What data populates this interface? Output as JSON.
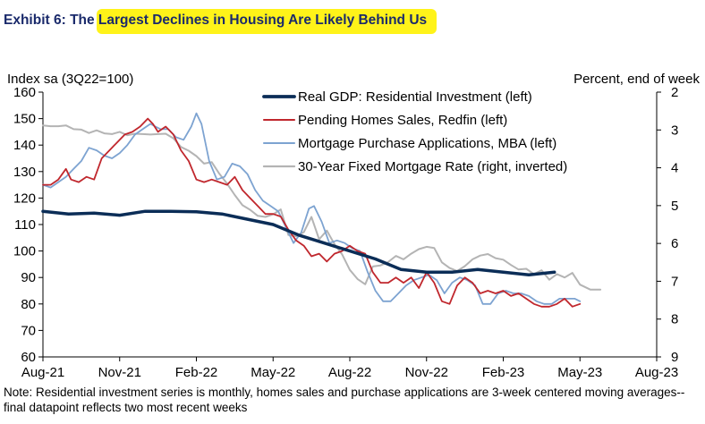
{
  "title": "Exhibit 6: The Largest Declines in Housing Are Likely Behind Us",
  "note": "Note: Residential investment series is monthly, homes sales and purchase applications are 3-week centered moving averages--final datapoint reflects two most recent weeks",
  "chart_data": {
    "type": "line",
    "left_axis_label": "Index sa (3Q22=100)",
    "right_axis_label": "Percent, end of week",
    "ylim_left": [
      60,
      160
    ],
    "yticks_left": [
      "60",
      "70",
      "80",
      "90",
      "100",
      "110",
      "120",
      "130",
      "140",
      "150",
      "160"
    ],
    "ylim_right": [
      2,
      9
    ],
    "right_axis_inverted": true,
    "yticks_right": [
      "2",
      "3",
      "4",
      "5",
      "6",
      "7",
      "8",
      "9"
    ],
    "xticks": [
      "Aug-21",
      "Nov-21",
      "Feb-22",
      "May-22",
      "Aug-22",
      "Nov-22",
      "Feb-23",
      "May-23",
      "Aug-23"
    ],
    "x_unit": "months since Aug-21",
    "legend_position": "top-center",
    "grid": false,
    "series": [
      {
        "name": "Real GDP: Residential Investment (left)",
        "color": "#0b2d57",
        "axis": "left",
        "points": [
          [
            0,
            115
          ],
          [
            1,
            114
          ],
          [
            2,
            114.3
          ],
          [
            3,
            113.5
          ],
          [
            4,
            115
          ],
          [
            5,
            115
          ],
          [
            6,
            114.8
          ],
          [
            7,
            114
          ],
          [
            8,
            112
          ],
          [
            9,
            110
          ],
          [
            10,
            106
          ],
          [
            11,
            103
          ],
          [
            12,
            100
          ],
          [
            13,
            97
          ],
          [
            14,
            93
          ],
          [
            15,
            92
          ],
          [
            16,
            92
          ],
          [
            17,
            93
          ],
          [
            18,
            92
          ],
          [
            19,
            91
          ],
          [
            20,
            92
          ]
        ]
      },
      {
        "name": "Pending Homes Sales, Redfin (left)",
        "color": "#c0272d",
        "axis": "left",
        "points": [
          [
            0,
            125
          ],
          [
            0.3,
            125
          ],
          [
            0.6,
            127
          ],
          [
            0.9,
            131
          ],
          [
            1.1,
            127
          ],
          [
            1.4,
            126
          ],
          [
            1.7,
            128
          ],
          [
            2.0,
            127
          ],
          [
            2.3,
            135
          ],
          [
            2.6,
            138
          ],
          [
            2.9,
            141
          ],
          [
            3.2,
            144
          ],
          [
            3.5,
            145
          ],
          [
            3.8,
            147
          ],
          [
            4.1,
            150
          ],
          [
            4.3,
            148
          ],
          [
            4.5,
            145
          ],
          [
            4.8,
            147
          ],
          [
            5.1,
            144
          ],
          [
            5.4,
            138
          ],
          [
            5.7,
            134
          ],
          [
            6.0,
            127
          ],
          [
            6.3,
            126
          ],
          [
            6.6,
            127
          ],
          [
            6.9,
            126
          ],
          [
            7.2,
            125
          ],
          [
            7.5,
            128
          ],
          [
            7.8,
            123
          ],
          [
            8.1,
            120
          ],
          [
            8.4,
            117
          ],
          [
            8.7,
            114
          ],
          [
            9.0,
            114
          ],
          [
            9.3,
            113
          ],
          [
            9.6,
            108
          ],
          [
            9.9,
            104
          ],
          [
            10.2,
            102
          ],
          [
            10.5,
            98
          ],
          [
            10.8,
            99
          ],
          [
            11.1,
            96
          ],
          [
            11.4,
            99
          ],
          [
            11.7,
            100
          ],
          [
            12.0,
            102
          ],
          [
            12.3,
            100
          ],
          [
            12.6,
            99
          ],
          [
            12.9,
            92
          ],
          [
            13.2,
            88
          ],
          [
            13.5,
            88
          ],
          [
            13.8,
            90
          ],
          [
            14.1,
            88
          ],
          [
            14.4,
            90
          ],
          [
            14.7,
            86
          ],
          [
            15.0,
            92
          ],
          [
            15.3,
            88
          ],
          [
            15.6,
            81
          ],
          [
            15.9,
            80
          ],
          [
            16.2,
            87
          ],
          [
            16.5,
            90
          ],
          [
            16.8,
            88
          ],
          [
            17.1,
            84
          ],
          [
            17.4,
            85
          ],
          [
            17.7,
            84
          ],
          [
            18.0,
            85
          ],
          [
            18.3,
            83
          ],
          [
            18.6,
            84
          ],
          [
            18.9,
            82
          ],
          [
            19.2,
            80
          ],
          [
            19.5,
            79
          ],
          [
            19.8,
            79
          ],
          [
            20.1,
            80
          ],
          [
            20.4,
            82
          ],
          [
            20.7,
            79
          ],
          [
            21.0,
            80
          ]
        ]
      },
      {
        "name": "Mortgage Purchase Applications, MBA (left)",
        "color": "#7da3d1",
        "axis": "left",
        "points": [
          [
            0,
            125
          ],
          [
            0.3,
            124
          ],
          [
            0.6,
            126
          ],
          [
            0.9,
            128
          ],
          [
            1.2,
            131
          ],
          [
            1.5,
            134
          ],
          [
            1.8,
            139
          ],
          [
            2.1,
            138
          ],
          [
            2.4,
            136
          ],
          [
            2.7,
            135
          ],
          [
            3.0,
            137
          ],
          [
            3.3,
            140
          ],
          [
            3.6,
            144
          ],
          [
            3.9,
            146
          ],
          [
            4.2,
            148
          ],
          [
            4.4,
            147
          ],
          [
            4.6,
            146
          ],
          [
            4.9,
            146
          ],
          [
            5.2,
            143
          ],
          [
            5.5,
            142
          ],
          [
            5.8,
            147
          ],
          [
            6.0,
            152
          ],
          [
            6.2,
            148
          ],
          [
            6.5,
            134
          ],
          [
            6.8,
            127
          ],
          [
            7.1,
            128
          ],
          [
            7.4,
            133
          ],
          [
            7.7,
            132
          ],
          [
            8.0,
            129
          ],
          [
            8.3,
            123
          ],
          [
            8.6,
            119
          ],
          [
            8.9,
            117
          ],
          [
            9.2,
            115
          ],
          [
            9.5,
            109
          ],
          [
            9.8,
            103
          ],
          [
            10.1,
            107
          ],
          [
            10.4,
            116
          ],
          [
            10.6,
            117
          ],
          [
            10.9,
            111
          ],
          [
            11.2,
            103
          ],
          [
            11.5,
            104
          ],
          [
            11.8,
            103
          ],
          [
            12.1,
            101
          ],
          [
            12.4,
            100
          ],
          [
            12.7,
            92
          ],
          [
            13.0,
            85
          ],
          [
            13.3,
            81
          ],
          [
            13.6,
            81
          ],
          [
            13.9,
            84
          ],
          [
            14.2,
            87
          ],
          [
            14.5,
            89
          ],
          [
            14.8,
            90
          ],
          [
            15.1,
            91
          ],
          [
            15.4,
            89
          ],
          [
            15.7,
            84
          ],
          [
            16.0,
            88
          ],
          [
            16.3,
            90
          ],
          [
            16.6,
            89
          ],
          [
            16.9,
            87
          ],
          [
            17.2,
            80
          ],
          [
            17.5,
            80
          ],
          [
            17.8,
            84
          ],
          [
            18.1,
            85
          ],
          [
            18.4,
            84
          ],
          [
            18.7,
            84
          ],
          [
            19.0,
            83
          ],
          [
            19.3,
            81
          ],
          [
            19.6,
            80
          ],
          [
            19.9,
            80
          ],
          [
            20.2,
            82
          ],
          [
            20.5,
            82
          ],
          [
            20.8,
            82
          ],
          [
            21.0,
            81
          ]
        ]
      },
      {
        "name": "30-Year Fixed Mortgage Rate (right, inverted)",
        "color": "#b4b4b4",
        "axis": "right",
        "points": [
          [
            0,
            2.88
          ],
          [
            0.3,
            2.9
          ],
          [
            0.6,
            2.9
          ],
          [
            0.9,
            2.88
          ],
          [
            1.2,
            2.98
          ],
          [
            1.5,
            2.99
          ],
          [
            1.8,
            3.08
          ],
          [
            2.1,
            3.01
          ],
          [
            2.4,
            3.09
          ],
          [
            2.7,
            3.11
          ],
          [
            3.0,
            3.05
          ],
          [
            3.3,
            3.14
          ],
          [
            3.6,
            3.1
          ],
          [
            3.9,
            3.11
          ],
          [
            4.2,
            3.12
          ],
          [
            4.5,
            3.11
          ],
          [
            4.8,
            3.1
          ],
          [
            5.1,
            3.22
          ],
          [
            5.4,
            3.45
          ],
          [
            5.7,
            3.55
          ],
          [
            6.0,
            3.69
          ],
          [
            6.3,
            3.89
          ],
          [
            6.6,
            3.85
          ],
          [
            6.9,
            4.16
          ],
          [
            7.2,
            4.42
          ],
          [
            7.5,
            4.72
          ],
          [
            7.8,
            4.99
          ],
          [
            8.1,
            5.11
          ],
          [
            8.4,
            5.27
          ],
          [
            8.7,
            5.3
          ],
          [
            9.0,
            5.23
          ],
          [
            9.3,
            5.1
          ],
          [
            9.6,
            5.78
          ],
          [
            9.9,
            5.81
          ],
          [
            10.2,
            5.7
          ],
          [
            10.5,
            5.3
          ],
          [
            10.8,
            5.89
          ],
          [
            11.1,
            5.66
          ],
          [
            11.4,
            6.02
          ],
          [
            11.7,
            6.29
          ],
          [
            12.0,
            6.7
          ],
          [
            12.3,
            6.94
          ],
          [
            12.6,
            7.08
          ],
          [
            12.9,
            6.61
          ],
          [
            13.2,
            6.58
          ],
          [
            13.5,
            6.49
          ],
          [
            13.8,
            6.33
          ],
          [
            14.1,
            6.42
          ],
          [
            14.4,
            6.27
          ],
          [
            14.7,
            6.15
          ],
          [
            15.0,
            6.09
          ],
          [
            15.3,
            6.12
          ],
          [
            15.6,
            6.5
          ],
          [
            15.9,
            6.65
          ],
          [
            16.2,
            6.73
          ],
          [
            16.5,
            6.6
          ],
          [
            16.8,
            6.42
          ],
          [
            17.1,
            6.32
          ],
          [
            17.4,
            6.28
          ],
          [
            17.7,
            6.39
          ],
          [
            18.0,
            6.43
          ],
          [
            18.3,
            6.57
          ],
          [
            18.6,
            6.69
          ],
          [
            18.9,
            6.67
          ],
          [
            19.2,
            6.81
          ],
          [
            19.5,
            6.71
          ],
          [
            19.8,
            6.96
          ],
          [
            20.1,
            6.81
          ],
          [
            20.4,
            6.9
          ],
          [
            20.7,
            6.78
          ],
          [
            21.0,
            7.09
          ],
          [
            21.4,
            7.22
          ],
          [
            21.8,
            7.22
          ]
        ]
      }
    ]
  }
}
